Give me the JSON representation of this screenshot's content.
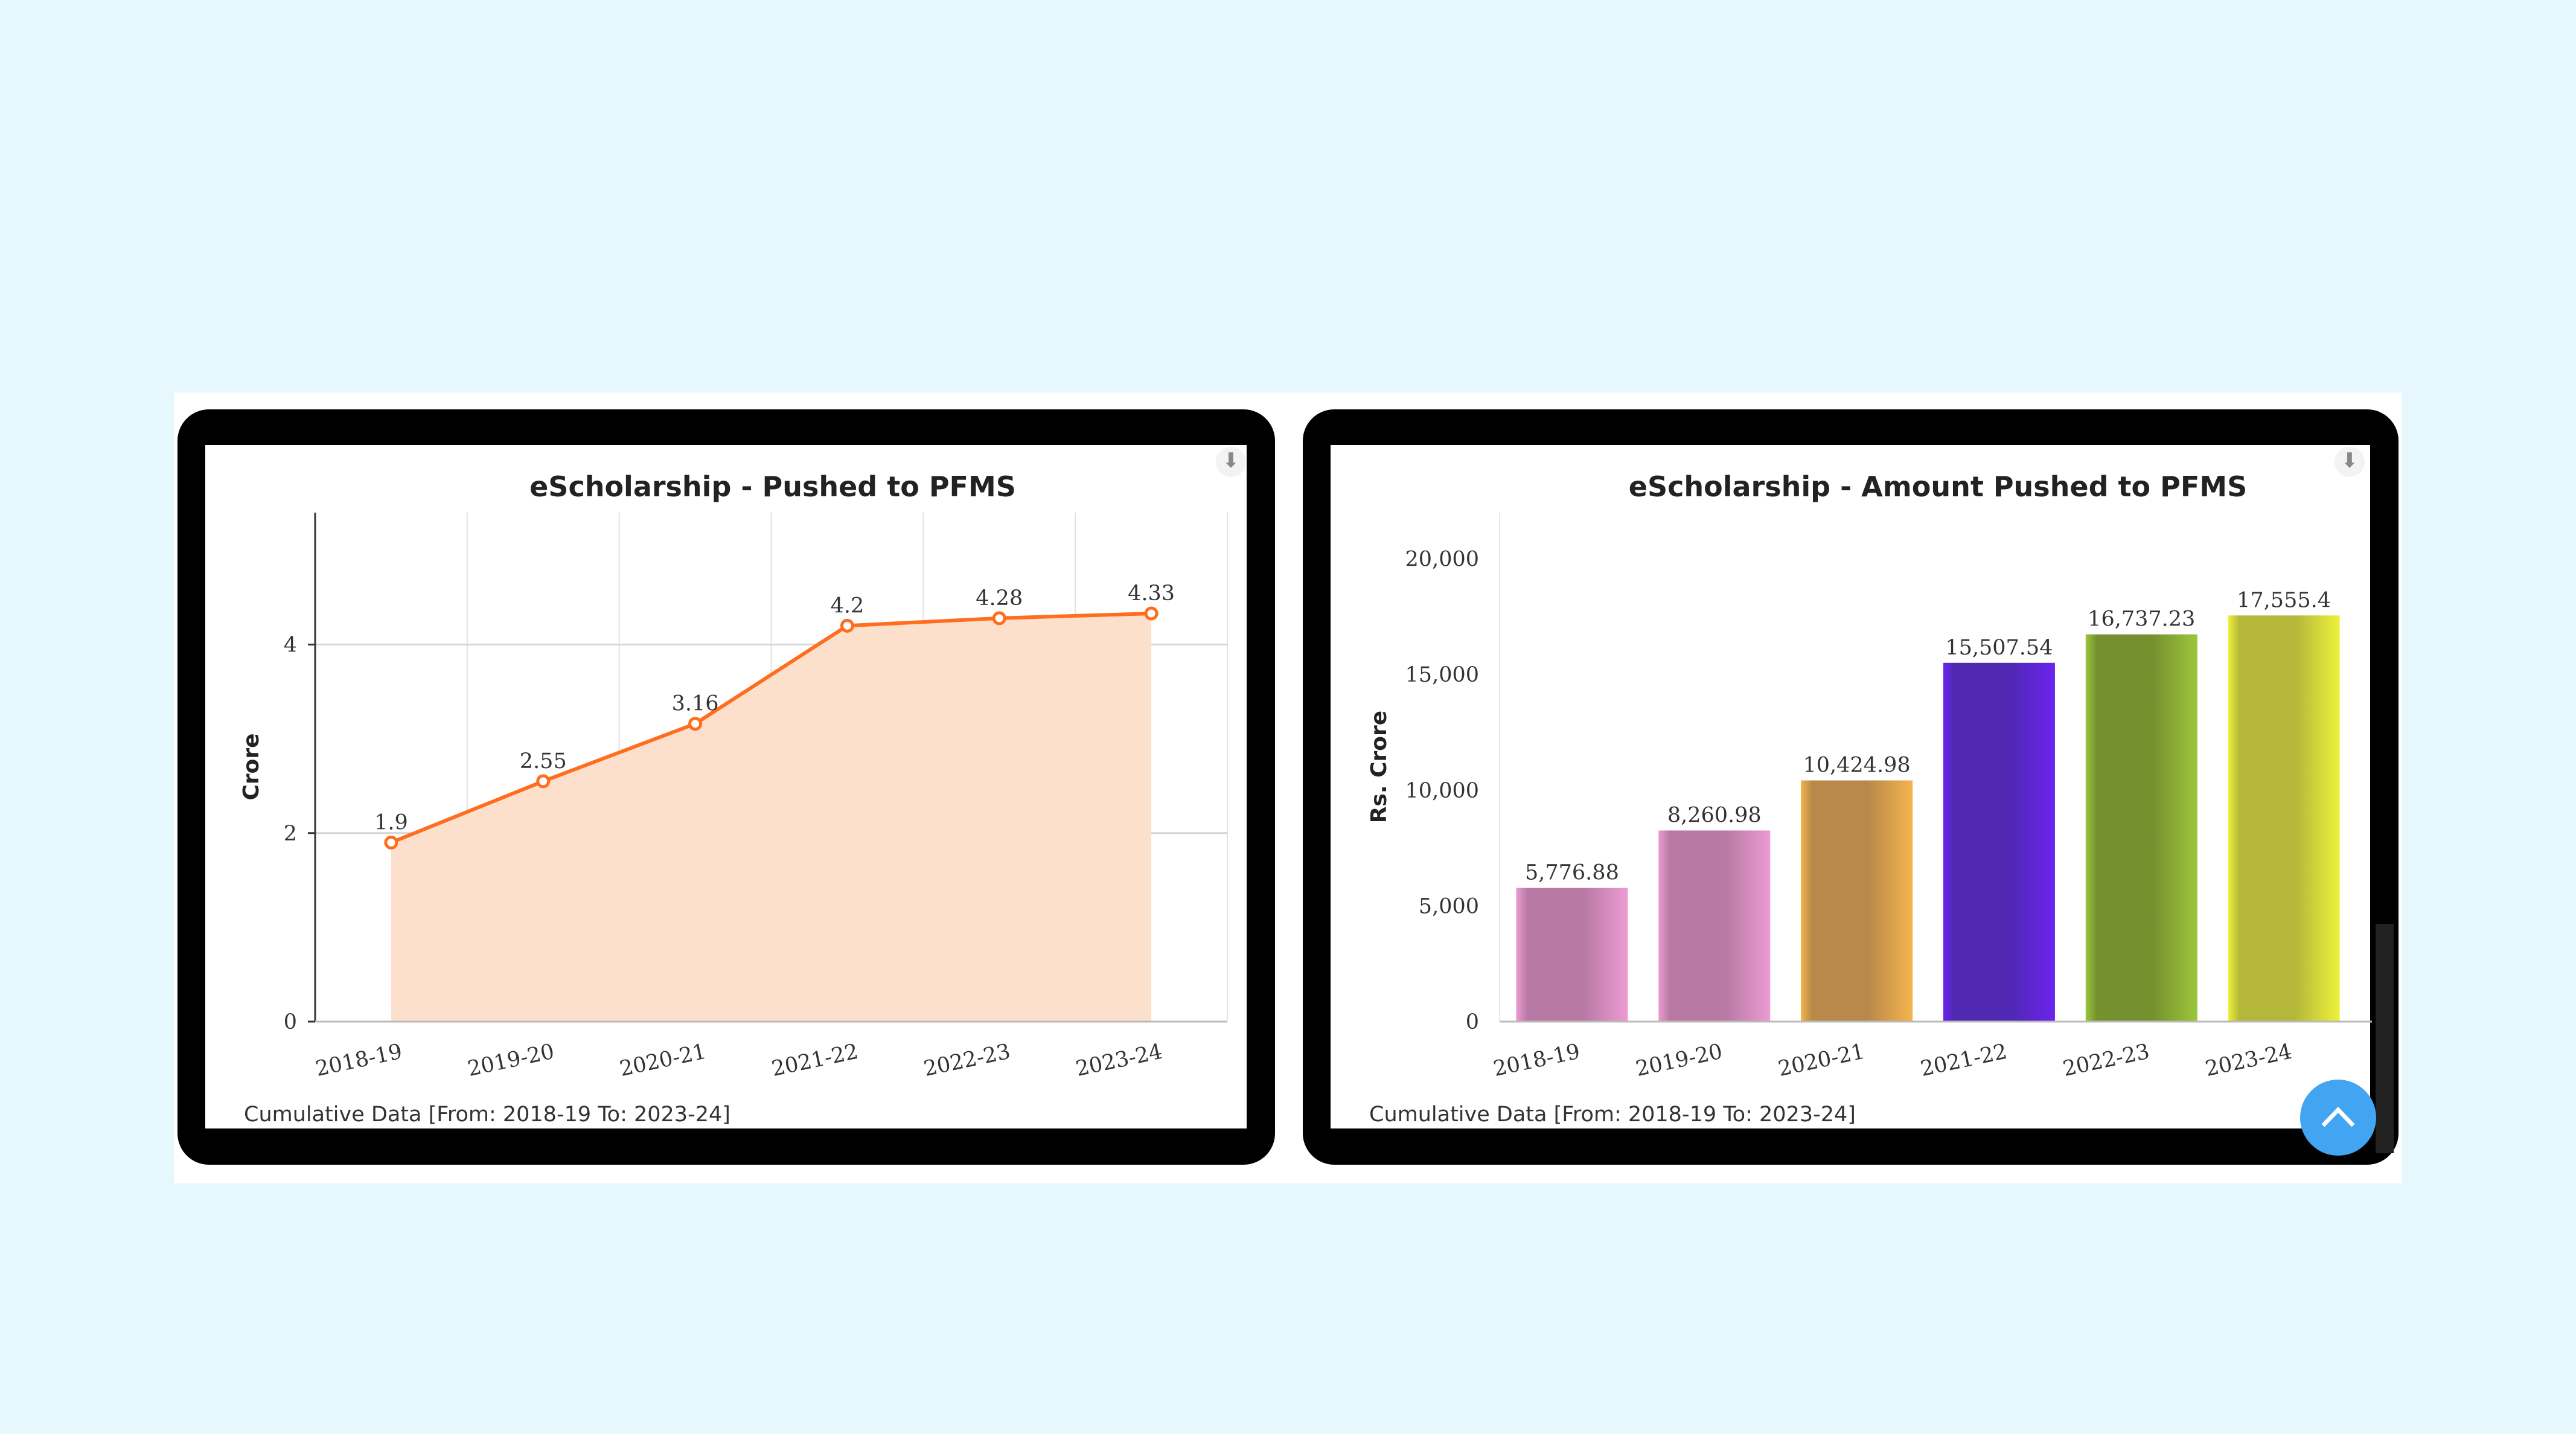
{
  "chart_data": [
    {
      "type": "area",
      "title": "eScholarship - Pushed to PFMS",
      "ylabel": "Crore",
      "xlabel": "",
      "categories": [
        "2018-19",
        "2019-20",
        "2020-21",
        "2021-22",
        "2022-23",
        "2023-24"
      ],
      "values": [
        1.9,
        2.55,
        3.16,
        4.2,
        4.28,
        4.33
      ],
      "data_labels": [
        "1.9",
        "2.55",
        "3.16",
        "4.2",
        "4.28",
        "4.33"
      ],
      "yticks": [
        "0",
        "2",
        "4"
      ],
      "ylim": [
        0,
        5.4
      ],
      "grid": true,
      "color": "#ff6d1f",
      "fill_color": "#fde0cc",
      "footer": "Cumulative Data [From: 2018-19 To: 2023-24]"
    },
    {
      "type": "bar",
      "title": "eScholarship - Amount Pushed to PFMS",
      "ylabel": "Rs. Crore",
      "xlabel": "",
      "categories": [
        "2018-19",
        "2019-20",
        "2020-21",
        "2021-22",
        "2022-23",
        "2023-24"
      ],
      "values": [
        5776.88,
        8260.98,
        10424.98,
        15507.54,
        16737.23,
        17555.4
      ],
      "data_labels": [
        "5,776.88",
        "8,260.98",
        "10,424.98",
        "15,507.54",
        "16,737.23",
        "17,555.4"
      ],
      "yticks": [
        "0",
        "5,000",
        "10,000",
        "15,000",
        "20,000"
      ],
      "ylim": [
        0,
        22000
      ],
      "grid": false,
      "colors": [
        [
          "#b87aa4",
          "#ec9bd3"
        ],
        [
          "#b87aa4",
          "#ec9bd3"
        ],
        [
          "#b8894a",
          "#f5b44c"
        ],
        [
          "#5028b2",
          "#6b24ee"
        ],
        [
          "#75912f",
          "#9cc63c"
        ],
        [
          "#b4b73a",
          "#eef23b"
        ]
      ],
      "footer": "Cumulative Data [From: 2018-19 To: 2023-24]"
    }
  ],
  "icons": {
    "download": "download-icon",
    "scroll_top": "chevron-up-icon"
  }
}
